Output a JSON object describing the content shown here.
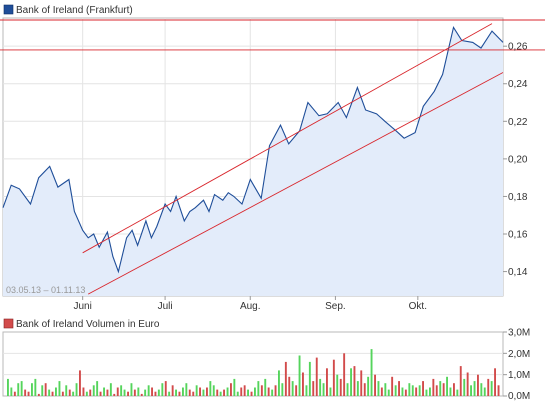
{
  "chart_data": [
    {
      "type": "line",
      "legend": "Bank of Ireland (Frankfurt)",
      "date_range_label": "03.05.13 – 01.11.13",
      "ylim": [
        0.127,
        0.275
      ],
      "y_ticks": [
        0.14,
        0.16,
        0.18,
        0.2,
        0.22,
        0.24,
        0.26
      ],
      "y_tick_labels": [
        "0,14",
        "0,16",
        "0,18",
        "0,20",
        "0,22",
        "0,24",
        "0,26"
      ],
      "x_start": "2013-05-03",
      "x_end": "2013-11-01",
      "x_ticks": [
        {
          "date": "2013-06-01",
          "label": "Juni"
        },
        {
          "date": "2013-07-01",
          "label": "Juli"
        },
        {
          "date": "2013-08-01",
          "label": "Aug."
        },
        {
          "date": "2013-09-01",
          "label": "Sep."
        },
        {
          "date": "2013-10-01",
          "label": "Okt."
        }
      ],
      "series": [
        {
          "dates": [
            "2013-05-03",
            "2013-05-06",
            "2013-05-09",
            "2013-05-13",
            "2013-05-16",
            "2013-05-20",
            "2013-05-23",
            "2013-05-27",
            "2013-05-29",
            "2013-06-01",
            "2013-06-03",
            "2013-06-05",
            "2013-06-07",
            "2013-06-10",
            "2013-06-12",
            "2013-06-14",
            "2013-06-17",
            "2013-06-19",
            "2013-06-21",
            "2013-06-24",
            "2013-06-26",
            "2013-06-28",
            "2013-07-01",
            "2013-07-03",
            "2013-07-05",
            "2013-07-08",
            "2013-07-10",
            "2013-07-12",
            "2013-07-15",
            "2013-07-17",
            "2013-07-19",
            "2013-07-22",
            "2013-07-24",
            "2013-07-26",
            "2013-07-29",
            "2013-08-01",
            "2013-08-05",
            "2013-08-08",
            "2013-08-12",
            "2013-08-15",
            "2013-08-19",
            "2013-08-22",
            "2013-08-26",
            "2013-08-29",
            "2013-09-02",
            "2013-09-05",
            "2013-09-09",
            "2013-09-12",
            "2013-09-16",
            "2013-09-19",
            "2013-09-23",
            "2013-09-26",
            "2013-09-30",
            "2013-10-03",
            "2013-10-07",
            "2013-10-10",
            "2013-10-14",
            "2013-10-17",
            "2013-10-21",
            "2013-10-24",
            "2013-10-28",
            "2013-11-01"
          ],
          "values": [
            0.174,
            0.186,
            0.184,
            0.176,
            0.19,
            0.196,
            0.185,
            0.189,
            0.172,
            0.162,
            0.158,
            0.16,
            0.153,
            0.161,
            0.148,
            0.14,
            0.158,
            0.162,
            0.154,
            0.167,
            0.158,
            0.164,
            0.176,
            0.172,
            0.18,
            0.167,
            0.172,
            0.174,
            0.178,
            0.172,
            0.181,
            0.178,
            0.182,
            0.18,
            0.176,
            0.189,
            0.179,
            0.207,
            0.218,
            0.208,
            0.215,
            0.23,
            0.223,
            0.224,
            0.23,
            0.222,
            0.238,
            0.226,
            0.224,
            0.22,
            0.215,
            0.211,
            0.214,
            0.228,
            0.236,
            0.245,
            0.27,
            0.263,
            0.262,
            0.259,
            0.268,
            0.262
          ],
          "color": "#1f4e99",
          "fill": "#e3ecfa"
        }
      ],
      "trendlines": [
        {
          "from": {
            "date": "2013-06-01",
            "value": 0.15
          },
          "to": {
            "date": "2013-10-28",
            "value": 0.272
          }
        },
        {
          "from": {
            "date": "2013-06-03",
            "value": 0.128
          },
          "to": {
            "date": "2013-11-01",
            "value": 0.246
          }
        }
      ],
      "hline": 0.258,
      "line_color": "#d9262c"
    },
    {
      "type": "bar",
      "legend": "Bank of Ireland Volumen in Euro",
      "ylim": [
        0,
        3.0
      ],
      "y_ticks": [
        0,
        1,
        2,
        3
      ],
      "y_tick_labels": [
        "0,0M",
        "1,0M",
        "2,0M",
        "3,0M"
      ],
      "color_up": "#55d45c",
      "color_down": "#d24b4b",
      "values": [
        0.8,
        0.4,
        0.2,
        0.6,
        0.7,
        0.3,
        0.2,
        0.6,
        0.8,
        0.1,
        0.5,
        0.6,
        0.3,
        0.2,
        0.4,
        0.7,
        0.2,
        0.5,
        0.3,
        0.2,
        0.6,
        1.2,
        0.4,
        0.2,
        0.3,
        0.5,
        0.7,
        0.2,
        0.4,
        0.3,
        0.6,
        0.1,
        0.4,
        0.5,
        0.3,
        0.2,
        0.6,
        0.3,
        0.4,
        0.1,
        0.3,
        0.5,
        0.4,
        0.2,
        0.3,
        0.6,
        0.7,
        0.2,
        0.5,
        0.3,
        0.2,
        0.4,
        0.6,
        0.3,
        0.2,
        0.5,
        0.4,
        0.3,
        0.4,
        0.7,
        0.5,
        0.3,
        0.2,
        0.3,
        0.4,
        0.6,
        0.8,
        0.2,
        0.4,
        0.5,
        0.3,
        0.2,
        0.4,
        0.7,
        0.5,
        0.8,
        0.4,
        0.3,
        0.5,
        1.2,
        0.6,
        1.6,
        0.9,
        0.7,
        0.5,
        1.9,
        1.1,
        0.5,
        1.6,
        0.7,
        1.8,
        0.8,
        0.6,
        1.3,
        0.4,
        1.7,
        1.0,
        0.8,
        2.0,
        0.6,
        1.3,
        1.4,
        0.7,
        1.2,
        0.6,
        0.9,
        2.2,
        1.0,
        0.7,
        0.4,
        0.6,
        0.3,
        0.9,
        0.5,
        0.7,
        0.4,
        0.3,
        0.6,
        0.5,
        0.4,
        0.5,
        0.7,
        0.3,
        0.4,
        0.8,
        0.5,
        0.7,
        0.6,
        0.9,
        0.4,
        0.6,
        0.3,
        1.4,
        0.8,
        1.1,
        0.5,
        0.7,
        1.0,
        0.6,
        0.4,
        0.8,
        0.7,
        1.3,
        0.5
      ],
      "directions": [
        "u",
        "u",
        "d",
        "u",
        "u",
        "d",
        "d",
        "u",
        "u",
        "d",
        "u",
        "d",
        "u",
        "d",
        "u",
        "u",
        "d",
        "u",
        "d",
        "u",
        "u",
        "d",
        "d",
        "u",
        "d",
        "u",
        "u",
        "d",
        "u",
        "d",
        "u",
        "d",
        "d",
        "u",
        "u",
        "d",
        "u",
        "d",
        "u",
        "d",
        "u",
        "u",
        "d",
        "d",
        "u",
        "u",
        "d",
        "u",
        "d",
        "u",
        "d",
        "u",
        "u",
        "d",
        "d",
        "u",
        "d",
        "u",
        "d",
        "u",
        "u",
        "d",
        "u",
        "d",
        "u",
        "d",
        "u",
        "u",
        "d",
        "d",
        "u",
        "d",
        "u",
        "u",
        "d",
        "u",
        "d",
        "u",
        "d",
        "u",
        "u",
        "d",
        "d",
        "u",
        "d",
        "u",
        "d",
        "u",
        "u",
        "d",
        "d",
        "u",
        "u",
        "d",
        "u",
        "d",
        "u",
        "d",
        "d",
        "u",
        "u",
        "d",
        "u",
        "d",
        "d",
        "u",
        "u",
        "d",
        "u",
        "d",
        "u",
        "u",
        "d",
        "u",
        "d",
        "u",
        "d",
        "u",
        "u",
        "d",
        "u",
        "d",
        "u",
        "u",
        "d",
        "d",
        "u",
        "d",
        "u",
        "u",
        "d",
        "u",
        "d",
        "u",
        "d",
        "u",
        "u",
        "d",
        "u",
        "u",
        "d",
        "u",
        "d",
        "d"
      ]
    }
  ]
}
